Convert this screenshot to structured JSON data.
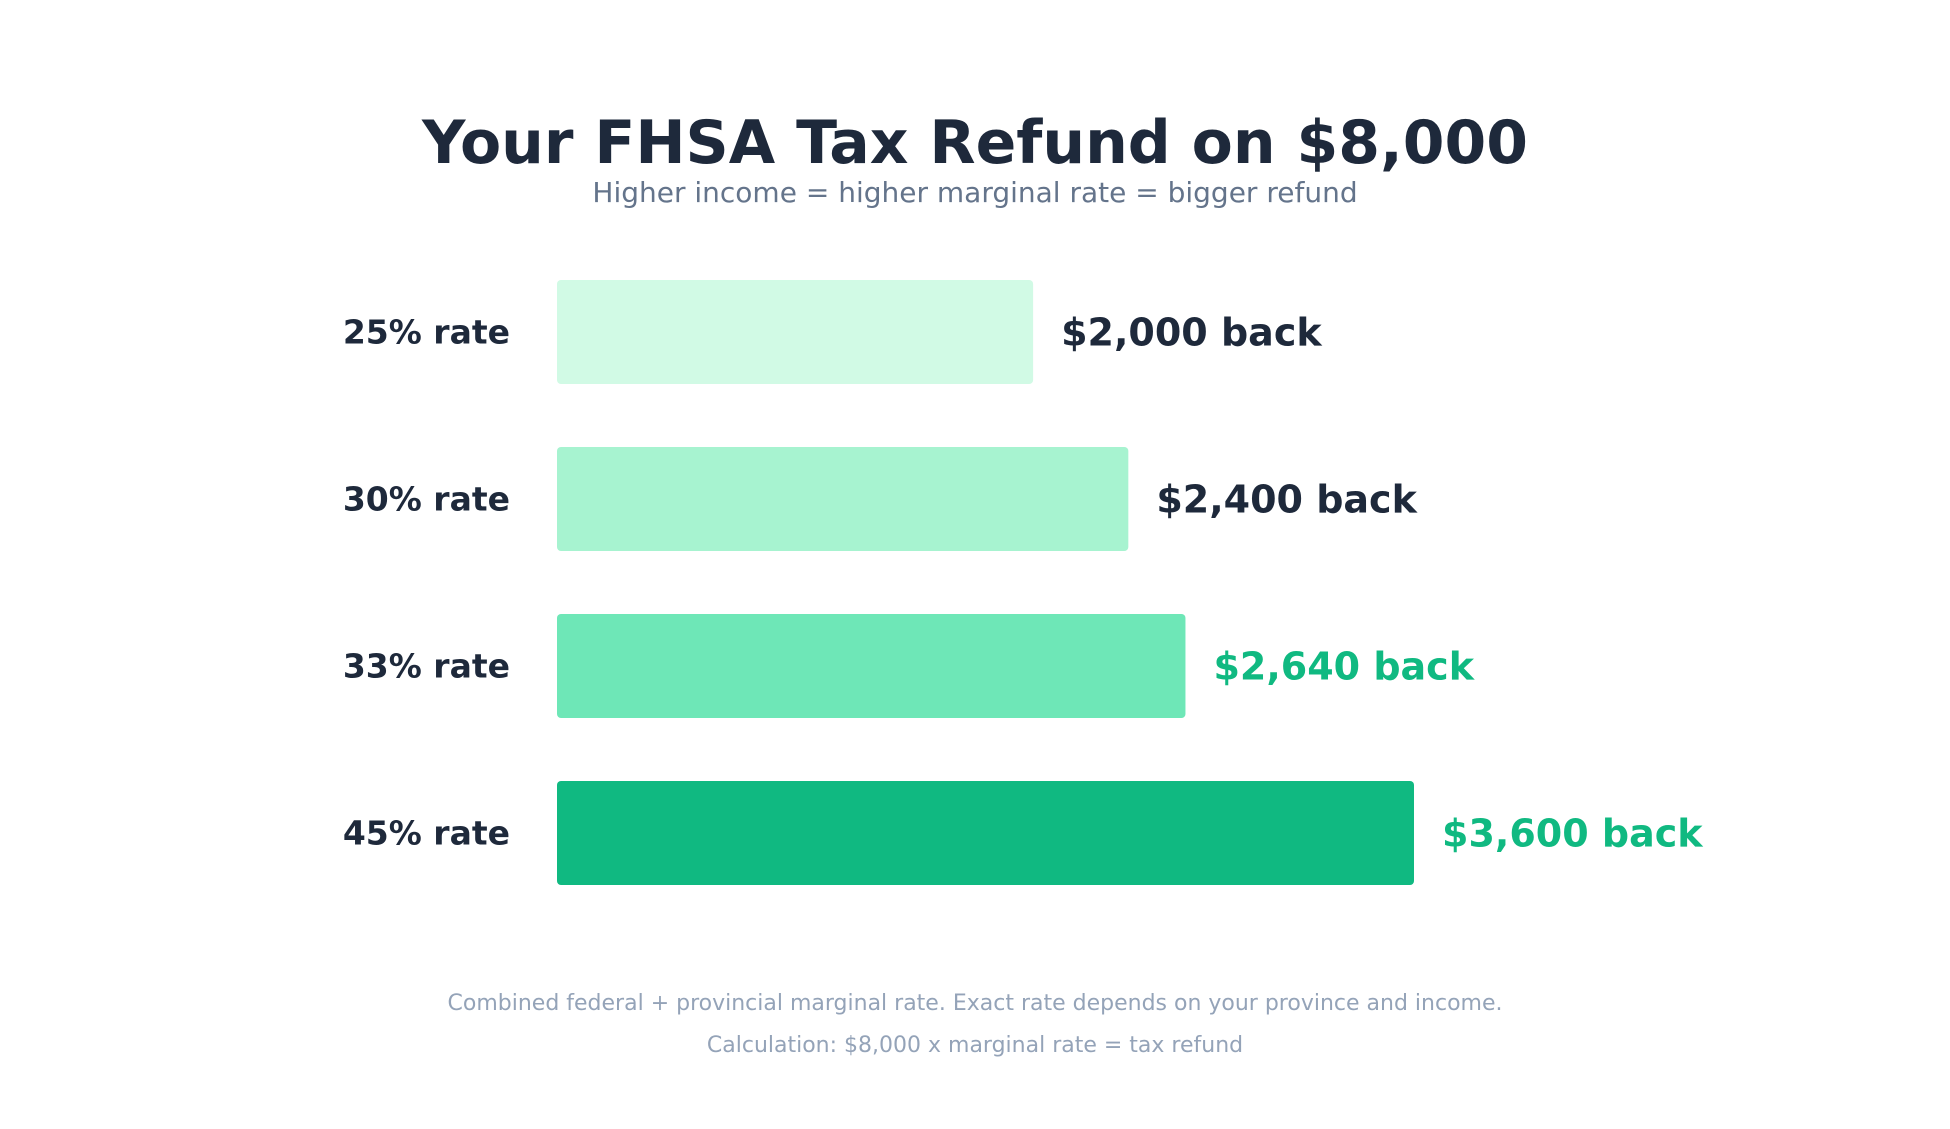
{
  "colors": {
    "title": "#1e293b",
    "subtitle": "#64748b",
    "footnote": "#94a3b8",
    "accent": "#10b981"
  },
  "chart_data": {
    "type": "bar",
    "orientation": "horizontal",
    "title": "Your FHSA Tax Refund on $8,000",
    "subtitle": "Higher income = higher marginal rate = bigger refund",
    "categories": [
      "25% rate",
      "30% rate",
      "33% rate",
      "45% rate"
    ],
    "values": [
      2000,
      2400,
      2640,
      3600
    ],
    "data_labels": [
      "$2,000 back",
      "$2,400 back",
      "$2,640 back",
      "$3,600 back"
    ],
    "bar_colors": [
      "#d1fae5",
      "#a7f3d0",
      "#6ee7b7",
      "#10b981"
    ],
    "label_colors": [
      "#1e293b",
      "#1e293b",
      "#10b981",
      "#10b981"
    ],
    "xlim": [
      0,
      3600
    ],
    "grid": false,
    "legend": "none",
    "footnotes": [
      "Combined federal + provincial marginal rate. Exact rate depends on your province and income.",
      "Calculation: $8,000 x marginal rate = tax refund"
    ]
  }
}
